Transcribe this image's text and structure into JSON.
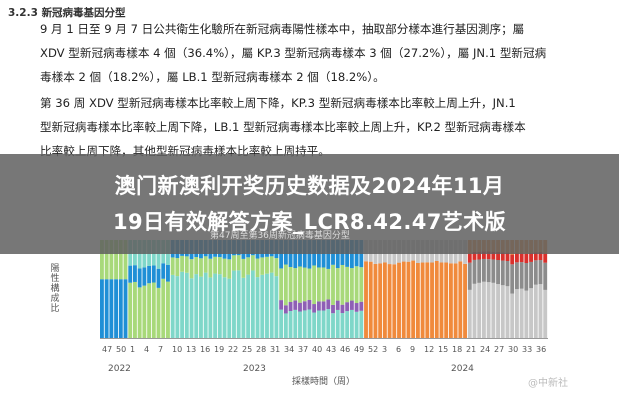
{
  "section": {
    "number": "3.2.3",
    "title": "新冠病毒基因分型"
  },
  "paragraphs": [
    "9 月 1 日至 9 月 7 日公共衛生化驗所在新冠病毒陽性樣本中，抽取部分樣本進行基因測序；屬",
    "XDV 型新冠病毒樣本 4 個（36.4%），屬 KP.3 型新冠病毒樣本 3 個（27.2%），屬 JN.1 型新冠病",
    "毒樣本 2 個（18.2%），屬 LB.1 型新冠病毒樣本 2 個（18.2%）。",
    "第 36 周 XDV 型新冠病毒樣本比率較上周下降，KP.3 型新冠病毒樣本比率較上周上升，JN.1",
    "型新冠病毒樣本比率較上周下降，LB.1 型新冠病毒樣本比率較上周上升，KP.2 型新冠病毒樣本",
    "比率較上周下降，其他型新冠病毒樣本比率較上周持平。"
  ],
  "headline": {
    "line1": "澳门新澳利开奖历史数据及2024年11月",
    "line2": "19日有效解答方案_LCR8.42.47艺术版"
  },
  "faded_caption": "第47周至第36周新冠病毒基因分型",
  "chart_data": {
    "type": "bar",
    "stacked": true,
    "ylabel": "陽性構成比",
    "xlabel": "採樣時間（周）",
    "year_labels": [
      "2022",
      "2023",
      "2024"
    ],
    "x_tick_labels": [
      "47",
      "50",
      "1",
      "4",
      "7",
      "10",
      "13",
      "16",
      "19",
      "22",
      "25",
      "28",
      "31",
      "34",
      "37",
      "40",
      "43",
      "46",
      "49",
      "52",
      "3",
      "6",
      "9",
      "12",
      "15",
      "18",
      "21",
      "24",
      "27",
      "30",
      "33",
      "36"
    ],
    "series_colors": {
      "early": "#1f8fd6",
      "bq": "#a8d97a",
      "xbb": "#7fd7c9",
      "eg": "#f08a3c",
      "jn": "#c7c7c7",
      "late": "#8c8c8c",
      "red": "#d9302c",
      "purple": "#8e5fb5"
    }
  },
  "watermark": "@中新社"
}
